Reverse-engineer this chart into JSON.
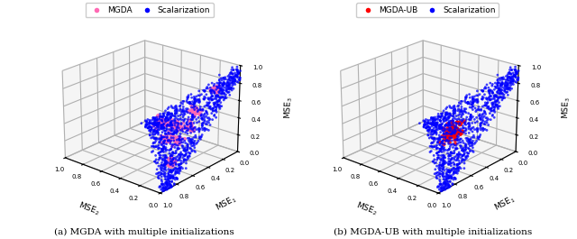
{
  "fig_width": 6.4,
  "fig_height": 2.65,
  "dpi": 100,
  "background_color": "white",
  "subtitle_left": "(a) MGDA with multiple initializations",
  "subtitle_right": "(b) MGDA-UB with multiple initializations",
  "subplot1": {
    "legend_labels": [
      "MGDA",
      "Scalarization"
    ],
    "scalarization_color": "#0000ff",
    "method_color": "#ff69b4",
    "xlabel": "MSE$_2$",
    "ylabel": "MSE$_1$",
    "zlabel": "MSE$_3$"
  },
  "subplot2": {
    "legend_labels": [
      "MGDA-UB",
      "Scalarization"
    ],
    "scalarization_color": "#0000ff",
    "method_color": "#ff0000",
    "xlabel": "MSE$_2$",
    "ylabel": "MSE$_1$",
    "zlabel": "MSE$_3$"
  },
  "n_pareto": 1200,
  "n_mgda": 220,
  "n_mgda_ub": 80,
  "seed": 42,
  "elev": 22,
  "azim": -50
}
